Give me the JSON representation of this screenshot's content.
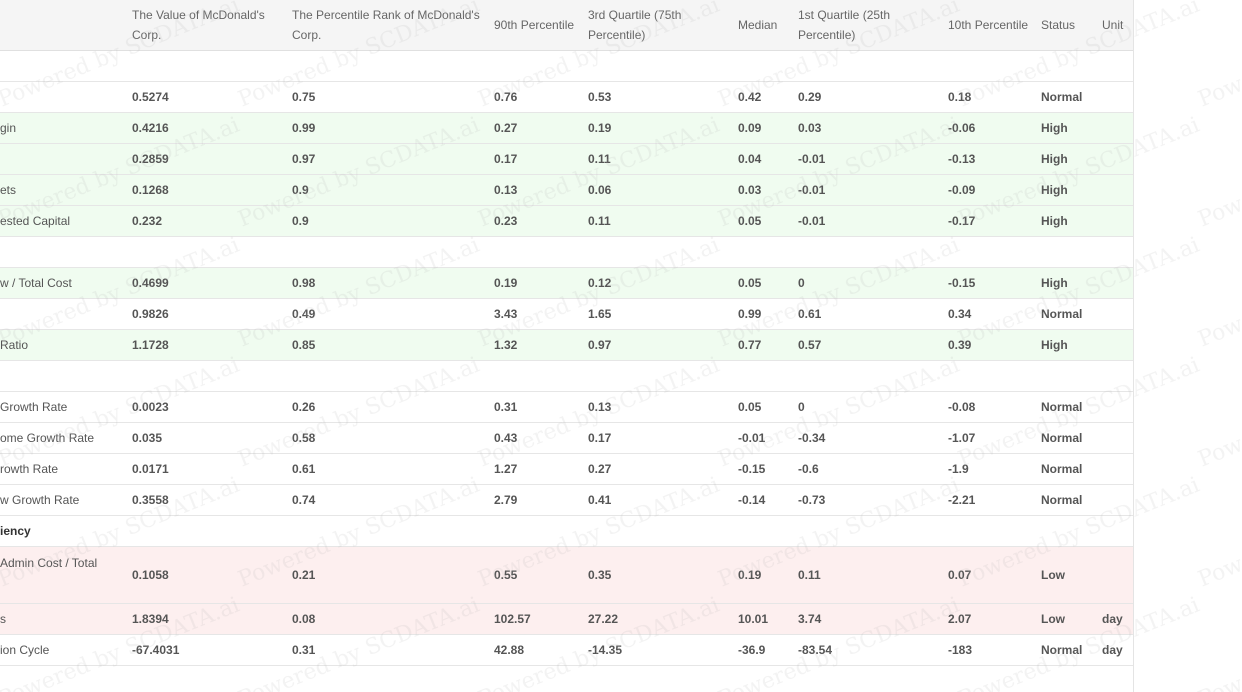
{
  "columns": {
    "metric": "",
    "value": "The Value of McDonald's Corp.",
    "rank": "The Percentile Rank of McDonald's Corp.",
    "p90": "90th Percentile",
    "q3": "3rd Quartile (75th Percentile)",
    "median": "Median",
    "q1": "1st Quartile (25th Percentile)",
    "p10": "10th Percentile",
    "status": "Status",
    "unit": "Unit"
  },
  "rows": [
    {
      "kind": "section",
      "metric": ""
    },
    {
      "kind": "normal",
      "metric": "",
      "value": "0.5274",
      "rank": "0.75",
      "p90": "0.76",
      "q3": "0.53",
      "median": "0.42",
      "q1": "0.29",
      "p10": "0.18",
      "status": "Normal",
      "unit": ""
    },
    {
      "kind": "high",
      "metric": "gin",
      "value": "0.4216",
      "rank": "0.99",
      "p90": "0.27",
      "q3": "0.19",
      "median": "0.09",
      "q1": "0.03",
      "p10": "-0.06",
      "status": "High",
      "unit": ""
    },
    {
      "kind": "high",
      "metric": "",
      "value": "0.2859",
      "rank": "0.97",
      "p90": "0.17",
      "q3": "0.11",
      "median": "0.04",
      "q1": "-0.01",
      "p10": "-0.13",
      "status": "High",
      "unit": ""
    },
    {
      "kind": "high",
      "metric": "ets",
      "value": "0.1268",
      "rank": "0.9",
      "p90": "0.13",
      "q3": "0.06",
      "median": "0.03",
      "q1": "-0.01",
      "p10": "-0.09",
      "status": "High",
      "unit": ""
    },
    {
      "kind": "high",
      "metric": "ested Capital",
      "value": "0.232",
      "rank": "0.9",
      "p90": "0.23",
      "q3": "0.11",
      "median": "0.05",
      "q1": "-0.01",
      "p10": "-0.17",
      "status": "High",
      "unit": ""
    },
    {
      "kind": "section",
      "metric": ""
    },
    {
      "kind": "high",
      "metric": "w / Total Cost",
      "value": "0.4699",
      "rank": "0.98",
      "p90": "0.19",
      "q3": "0.12",
      "median": "0.05",
      "q1": "0",
      "p10": "-0.15",
      "status": "High",
      "unit": ""
    },
    {
      "kind": "normal",
      "metric": "",
      "value": "0.9826",
      "rank": "0.49",
      "p90": "3.43",
      "q3": "1.65",
      "median": "0.99",
      "q1": "0.61",
      "p10": "0.34",
      "status": "Normal",
      "unit": ""
    },
    {
      "kind": "high",
      "metric": "Ratio",
      "value": "1.1728",
      "rank": "0.85",
      "p90": "1.32",
      "q3": "0.97",
      "median": "0.77",
      "q1": "0.57",
      "p10": "0.39",
      "status": "High",
      "unit": ""
    },
    {
      "kind": "section",
      "metric": ""
    },
    {
      "kind": "normal",
      "metric": "Growth Rate",
      "value": "0.0023",
      "rank": "0.26",
      "p90": "0.31",
      "q3": "0.13",
      "median": "0.05",
      "q1": "0",
      "p10": "-0.08",
      "status": "Normal",
      "unit": ""
    },
    {
      "kind": "normal",
      "metric": "ome Growth Rate",
      "value": "0.035",
      "rank": "0.58",
      "p90": "0.43",
      "q3": "0.17",
      "median": "-0.01",
      "q1": "-0.34",
      "p10": "-1.07",
      "status": "Normal",
      "unit": ""
    },
    {
      "kind": "normal",
      "metric": "rowth Rate",
      "value": "0.0171",
      "rank": "0.61",
      "p90": "1.27",
      "q3": "0.27",
      "median": "-0.15",
      "q1": "-0.6",
      "p10": "-1.9",
      "status": "Normal",
      "unit": ""
    },
    {
      "kind": "normal",
      "metric": "w Growth Rate",
      "value": "0.3558",
      "rank": "0.74",
      "p90": "2.79",
      "q3": "0.41",
      "median": "-0.14",
      "q1": "-0.73",
      "p10": "-2.21",
      "status": "Normal",
      "unit": ""
    },
    {
      "kind": "section",
      "metric": "iency"
    },
    {
      "kind": "low",
      "tall": true,
      "metric": "Admin Cost / Total",
      "value": "0.1058",
      "rank": "0.21",
      "p90": "0.55",
      "q3": "0.35",
      "median": "0.19",
      "q1": "0.11",
      "p10": "0.07",
      "status": "Low",
      "unit": ""
    },
    {
      "kind": "low",
      "metric": "s",
      "value": "1.8394",
      "rank": "0.08",
      "p90": "102.57",
      "q3": "27.22",
      "median": "10.01",
      "q1": "3.74",
      "p10": "2.07",
      "status": "Low",
      "unit": "day"
    },
    {
      "kind": "normal",
      "metric": "ion Cycle",
      "value": "-67.4031",
      "rank": "0.31",
      "p90": "42.88",
      "q3": "-14.35",
      "median": "-36.9",
      "q1": "-83.54",
      "p10": "-183",
      "status": "Normal",
      "unit": "day"
    }
  ],
  "watermark": "Powered by SCDATA.ai"
}
